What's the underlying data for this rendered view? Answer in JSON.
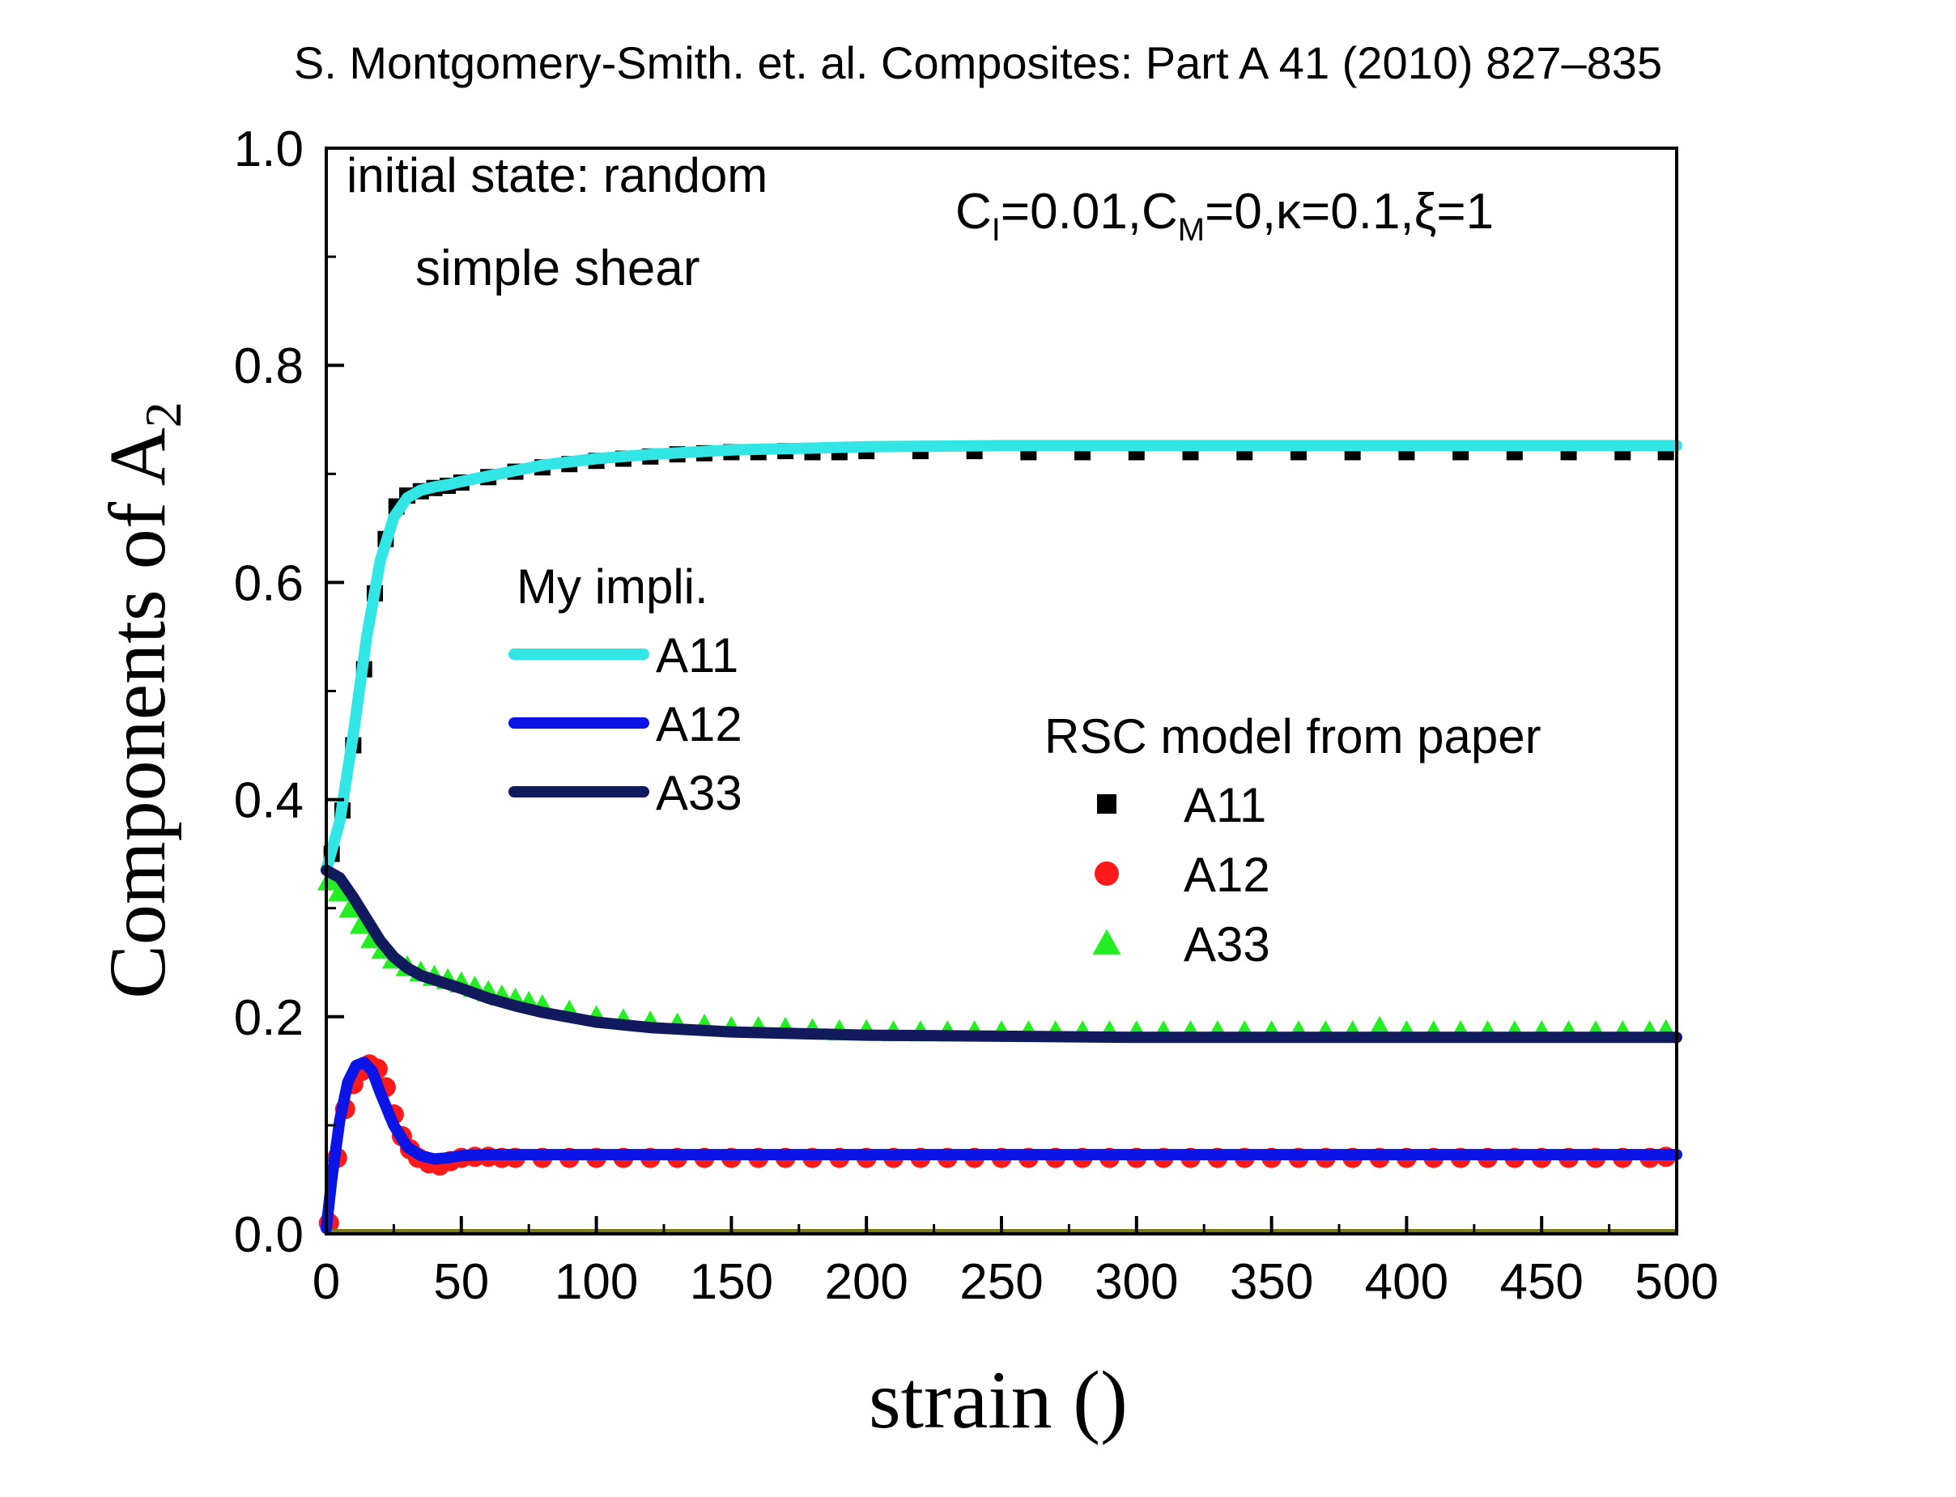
{
  "chart_data": {
    "type": "line",
    "title": "S. Montgomery-Smith. et. al. Composites: Part A 41 (2010) 827–835",
    "xlabel": "strain ()",
    "ylabel": "Components of A",
    "ylabel_sub": "2",
    "xlim": [
      0,
      500
    ],
    "ylim": [
      0.0,
      1.0
    ],
    "xticks": [
      0,
      50,
      100,
      150,
      200,
      250,
      300,
      350,
      400,
      450,
      500
    ],
    "xtick_labels": [
      "0",
      "50",
      "100",
      "150",
      "200",
      "250",
      "300",
      "350",
      "400",
      "450",
      "500"
    ],
    "yticks": [
      0.0,
      0.2,
      0.4,
      0.6,
      0.8,
      1.0
    ],
    "ytick_labels": [
      "0.0",
      "0.2",
      "0.4",
      "0.6",
      "0.8",
      "1.0"
    ],
    "grid": false,
    "annotations": {
      "initial_state": "initial state: random",
      "flow": "simple shear",
      "params": {
        "ci": "C",
        "ci_sub": "I",
        "ci_val": "=0.01,",
        "cm": "C",
        "cm_sub": "M",
        "cm_val": "=0,κ=0.1,ξ=1"
      }
    },
    "legend_lines_title": "My impli.",
    "legend_markers_title": "RSC model from paper",
    "series_lines": [
      {
        "name": "A11",
        "color": "#33e6e6",
        "x": [
          0,
          5,
          10,
          15,
          20,
          25,
          30,
          35,
          40,
          45,
          50,
          60,
          70,
          80,
          100,
          120,
          150,
          200,
          250,
          300,
          400,
          500
        ],
        "y": [
          0.335,
          0.38,
          0.46,
          0.55,
          0.62,
          0.66,
          0.678,
          0.685,
          0.688,
          0.69,
          0.693,
          0.698,
          0.703,
          0.708,
          0.714,
          0.718,
          0.722,
          0.725,
          0.726,
          0.726,
          0.726,
          0.726
        ]
      },
      {
        "name": "A12",
        "color": "#0a14e6",
        "x": [
          0,
          2,
          5,
          8,
          11,
          14,
          17,
          20,
          25,
          30,
          35,
          40,
          45,
          50,
          60,
          80,
          100,
          200,
          300,
          400,
          500
        ],
        "y": [
          0.005,
          0.05,
          0.105,
          0.14,
          0.155,
          0.158,
          0.15,
          0.13,
          0.1,
          0.08,
          0.072,
          0.069,
          0.07,
          0.072,
          0.073,
          0.073,
          0.073,
          0.073,
          0.073,
          0.073,
          0.073
        ]
      },
      {
        "name": "A33",
        "color": "#101a5c",
        "x": [
          0,
          5,
          10,
          15,
          20,
          25,
          30,
          35,
          40,
          50,
          60,
          70,
          80,
          100,
          120,
          150,
          200,
          250,
          300,
          400,
          500
        ],
        "y": [
          0.335,
          0.328,
          0.31,
          0.29,
          0.27,
          0.255,
          0.245,
          0.238,
          0.234,
          0.226,
          0.217,
          0.21,
          0.204,
          0.195,
          0.19,
          0.186,
          0.183,
          0.182,
          0.181,
          0.181,
          0.181
        ]
      }
    ],
    "series_markers": [
      {
        "name": "A11",
        "marker": "square",
        "color": "#000000",
        "x": [
          2,
          6,
          10,
          14,
          18,
          22,
          26,
          30,
          35,
          40,
          45,
          50,
          60,
          70,
          80,
          90,
          100,
          110,
          120,
          130,
          140,
          150,
          160,
          170,
          180,
          190,
          200,
          220,
          240,
          260,
          280,
          300,
          320,
          340,
          360,
          380,
          400,
          420,
          440,
          460,
          480,
          496
        ],
        "y": [
          0.35,
          0.39,
          0.45,
          0.52,
          0.59,
          0.64,
          0.67,
          0.68,
          0.684,
          0.687,
          0.689,
          0.692,
          0.697,
          0.702,
          0.706,
          0.709,
          0.712,
          0.714,
          0.716,
          0.718,
          0.719,
          0.72,
          0.72,
          0.721,
          0.72,
          0.72,
          0.721,
          0.721,
          0.721,
          0.72,
          0.72,
          0.72,
          0.72,
          0.72,
          0.72,
          0.72,
          0.72,
          0.72,
          0.72,
          0.72,
          0.72,
          0.72
        ]
      },
      {
        "name": "A12",
        "marker": "circle",
        "color": "#ff1a1a",
        "x": [
          1,
          4,
          7,
          10,
          13,
          16,
          19,
          22,
          25,
          28,
          31,
          34,
          38,
          42,
          46,
          50,
          55,
          60,
          65,
          70,
          80,
          90,
          100,
          110,
          120,
          130,
          140,
          150,
          160,
          170,
          180,
          190,
          200,
          210,
          220,
          230,
          240,
          250,
          260,
          270,
          280,
          290,
          300,
          310,
          320,
          330,
          340,
          350,
          360,
          370,
          380,
          390,
          400,
          410,
          420,
          430,
          440,
          450,
          460,
          470,
          480,
          490,
          496
        ],
        "y": [
          0.01,
          0.07,
          0.115,
          0.138,
          0.15,
          0.156,
          0.152,
          0.135,
          0.11,
          0.09,
          0.078,
          0.07,
          0.065,
          0.063,
          0.067,
          0.07,
          0.071,
          0.071,
          0.07,
          0.07,
          0.07,
          0.07,
          0.07,
          0.07,
          0.07,
          0.07,
          0.07,
          0.07,
          0.07,
          0.07,
          0.07,
          0.07,
          0.07,
          0.07,
          0.07,
          0.07,
          0.07,
          0.07,
          0.07,
          0.07,
          0.07,
          0.07,
          0.07,
          0.07,
          0.07,
          0.07,
          0.07,
          0.07,
          0.07,
          0.07,
          0.07,
          0.07,
          0.07,
          0.07,
          0.07,
          0.07,
          0.07,
          0.07,
          0.07,
          0.07,
          0.07,
          0.07,
          0.071
        ]
      },
      {
        "name": "A33",
        "marker": "triangle",
        "color": "#22ee22",
        "x": [
          1,
          5,
          9,
          13,
          17,
          21,
          25,
          30,
          35,
          40,
          45,
          50,
          55,
          60,
          65,
          70,
          75,
          80,
          90,
          100,
          110,
          120,
          130,
          140,
          150,
          160,
          170,
          180,
          190,
          200,
          210,
          220,
          230,
          240,
          250,
          260,
          270,
          280,
          290,
          300,
          310,
          320,
          330,
          340,
          350,
          360,
          370,
          380,
          390,
          400,
          410,
          420,
          430,
          440,
          450,
          460,
          470,
          480,
          490,
          496
        ],
        "y": [
          0.325,
          0.315,
          0.3,
          0.285,
          0.272,
          0.262,
          0.253,
          0.246,
          0.241,
          0.237,
          0.234,
          0.231,
          0.227,
          0.223,
          0.219,
          0.216,
          0.213,
          0.21,
          0.205,
          0.2,
          0.197,
          0.195,
          0.193,
          0.192,
          0.19,
          0.19,
          0.189,
          0.188,
          0.187,
          0.187,
          0.186,
          0.186,
          0.186,
          0.186,
          0.186,
          0.186,
          0.186,
          0.186,
          0.186,
          0.186,
          0.186,
          0.186,
          0.186,
          0.186,
          0.186,
          0.186,
          0.186,
          0.186,
          0.19,
          0.186,
          0.186,
          0.186,
          0.186,
          0.186,
          0.186,
          0.186,
          0.186,
          0.186,
          0.186,
          0.187
        ]
      }
    ],
    "baseline": {
      "y": 0.0,
      "color": "#7d7a1a"
    }
  }
}
